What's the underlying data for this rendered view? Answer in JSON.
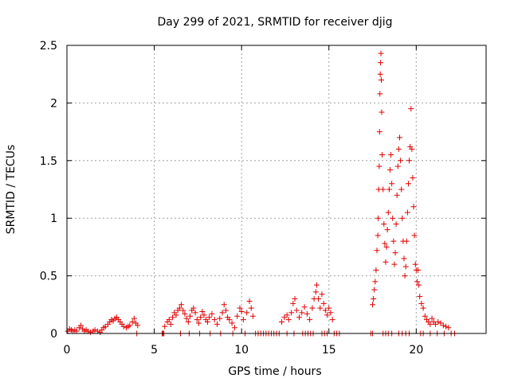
{
  "chart_data": {
    "type": "scatter",
    "title": "Day 299 of 2021, SRMTID for receiver djig",
    "xlabel": "GPS time / hours",
    "ylabel": "SRMTID / TECUs",
    "xlim": [
      0,
      24
    ],
    "ylim": [
      0,
      2.5
    ],
    "xticks": [
      0,
      5,
      10,
      15,
      20
    ],
    "yticks": [
      0,
      0.5,
      1,
      1.5,
      2,
      2.5
    ],
    "xtick_labels": [
      "0",
      "5",
      "10",
      "15",
      "20"
    ],
    "ytick_labels": [
      "0",
      "0.5",
      "1",
      "1.5",
      "2",
      "2.5"
    ],
    "grid": true,
    "marker": "+",
    "color": "#e00000",
    "series": [
      {
        "name": "SRMTID",
        "points": [
          [
            0.05,
            0.02
          ],
          [
            0.15,
            0.04
          ],
          [
            0.25,
            0.03
          ],
          [
            0.35,
            0.02
          ],
          [
            0.45,
            0.03
          ],
          [
            0.55,
            0.02
          ],
          [
            0.7,
            0.05
          ],
          [
            0.8,
            0.07
          ],
          [
            0.9,
            0.04
          ],
          [
            1.0,
            0.02
          ],
          [
            1.1,
            0.03
          ],
          [
            1.2,
            0.02
          ],
          [
            1.35,
            0.01
          ],
          [
            1.5,
            0.02
          ],
          [
            1.6,
            0.03
          ],
          [
            1.75,
            0.02
          ],
          [
            1.9,
            0.01
          ],
          [
            2.0,
            0.03
          ],
          [
            2.1,
            0.05
          ],
          [
            2.2,
            0.06
          ],
          [
            2.35,
            0.08
          ],
          [
            2.45,
            0.1
          ],
          [
            2.55,
            0.12
          ],
          [
            2.65,
            0.11
          ],
          [
            2.75,
            0.13
          ],
          [
            2.85,
            0.14
          ],
          [
            2.95,
            0.12
          ],
          [
            3.05,
            0.1
          ],
          [
            3.15,
            0.08
          ],
          [
            3.25,
            0.06
          ],
          [
            3.4,
            0.05
          ],
          [
            3.5,
            0.06
          ],
          [
            3.6,
            0.07
          ],
          [
            3.75,
            0.1
          ],
          [
            3.85,
            0.13
          ],
          [
            3.95,
            0.09
          ],
          [
            4.05,
            0.07
          ],
          [
            5.6,
            0.06
          ],
          [
            5.75,
            0.1
          ],
          [
            5.85,
            0.12
          ],
          [
            5.95,
            0.08
          ],
          [
            6.05,
            0.14
          ],
          [
            6.15,
            0.18
          ],
          [
            6.25,
            0.16
          ],
          [
            6.35,
            0.2
          ],
          [
            6.45,
            0.22
          ],
          [
            6.55,
            0.25
          ],
          [
            6.65,
            0.2
          ],
          [
            6.75,
            0.17
          ],
          [
            6.85,
            0.13
          ],
          [
            6.95,
            0.1
          ],
          [
            7.05,
            0.15
          ],
          [
            7.15,
            0.2
          ],
          [
            7.25,
            0.22
          ],
          [
            7.35,
            0.18
          ],
          [
            7.45,
            0.12
          ],
          [
            7.55,
            0.09
          ],
          [
            7.65,
            0.14
          ],
          [
            7.75,
            0.19
          ],
          [
            7.85,
            0.16
          ],
          [
            7.95,
            0.12
          ],
          [
            8.05,
            0.1
          ],
          [
            8.15,
            0.14
          ],
          [
            8.3,
            0.17
          ],
          [
            8.45,
            0.12
          ],
          [
            8.6,
            0.08
          ],
          [
            8.75,
            0.13
          ],
          [
            8.9,
            0.18
          ],
          [
            9.0,
            0.25
          ],
          [
            9.1,
            0.2
          ],
          [
            9.2,
            0.14
          ],
          [
            9.3,
            0.12
          ],
          [
            9.45,
            0.09
          ],
          [
            9.6,
            0.05
          ],
          [
            9.75,
            0.15
          ],
          [
            9.9,
            0.22
          ],
          [
            10.0,
            0.19
          ],
          [
            10.1,
            0.12
          ],
          [
            10.3,
            0.18
          ],
          [
            10.45,
            0.28
          ],
          [
            10.55,
            0.22
          ],
          [
            10.65,
            0.15
          ],
          [
            12.3,
            0.1
          ],
          [
            12.45,
            0.14
          ],
          [
            12.6,
            0.16
          ],
          [
            12.7,
            0.12
          ],
          [
            12.85,
            0.18
          ],
          [
            12.95,
            0.26
          ],
          [
            13.05,
            0.3
          ],
          [
            13.15,
            0.2
          ],
          [
            13.3,
            0.14
          ],
          [
            13.45,
            0.18
          ],
          [
            13.6,
            0.23
          ],
          [
            13.75,
            0.17
          ],
          [
            13.9,
            0.12
          ],
          [
            14.05,
            0.22
          ],
          [
            14.15,
            0.3
          ],
          [
            14.25,
            0.36
          ],
          [
            14.3,
            0.42
          ],
          [
            14.4,
            0.3
          ],
          [
            14.5,
            0.22
          ],
          [
            14.6,
            0.34
          ],
          [
            14.7,
            0.26
          ],
          [
            14.8,
            0.2
          ],
          [
            14.9,
            0.16
          ],
          [
            15.0,
            0.22
          ],
          [
            15.1,
            0.18
          ],
          [
            15.2,
            0.12
          ],
          [
            17.5,
            0.25
          ],
          [
            17.55,
            0.3
          ],
          [
            17.6,
            0.38
          ],
          [
            17.65,
            0.45
          ],
          [
            17.7,
            0.55
          ],
          [
            17.75,
            0.72
          ],
          [
            17.8,
            0.85
          ],
          [
            17.82,
            1.0
          ],
          [
            17.85,
            1.25
          ],
          [
            17.88,
            1.45
          ],
          [
            17.9,
            1.75
          ],
          [
            17.92,
            2.08
          ],
          [
            17.94,
            2.25
          ],
          [
            17.96,
            2.35
          ],
          [
            17.98,
            2.43
          ],
          [
            18.0,
            2.2
          ],
          [
            18.02,
            1.92
          ],
          [
            18.05,
            1.55
          ],
          [
            18.1,
            1.25
          ],
          [
            18.15,
            0.95
          ],
          [
            18.2,
            0.78
          ],
          [
            18.25,
            0.62
          ],
          [
            18.3,
            0.75
          ],
          [
            18.35,
            0.9
          ],
          [
            18.4,
            1.05
          ],
          [
            18.45,
            1.25
          ],
          [
            18.5,
            1.42
          ],
          [
            18.55,
            1.55
          ],
          [
            18.6,
            1.3
          ],
          [
            18.65,
            1.0
          ],
          [
            18.7,
            0.8
          ],
          [
            18.75,
            0.6
          ],
          [
            18.8,
            0.7
          ],
          [
            18.85,
            0.95
          ],
          [
            18.9,
            1.2
          ],
          [
            18.95,
            1.45
          ],
          [
            19.0,
            1.6
          ],
          [
            19.05,
            1.7
          ],
          [
            19.1,
            1.5
          ],
          [
            19.15,
            1.25
          ],
          [
            19.2,
            1.0
          ],
          [
            19.25,
            0.8
          ],
          [
            19.3,
            0.65
          ],
          [
            19.35,
            0.5
          ],
          [
            19.4,
            0.58
          ],
          [
            19.45,
            0.8
          ],
          [
            19.5,
            1.05
          ],
          [
            19.55,
            1.3
          ],
          [
            19.6,
            1.5
          ],
          [
            19.65,
            1.62
          ],
          [
            19.7,
            1.95
          ],
          [
            19.75,
            1.6
          ],
          [
            19.8,
            1.35
          ],
          [
            19.85,
            1.1
          ],
          [
            19.9,
            0.85
          ],
          [
            19.95,
            0.6
          ],
          [
            20.0,
            0.55
          ],
          [
            20.05,
            0.45
          ],
          [
            20.1,
            0.55
          ],
          [
            20.15,
            0.42
          ],
          [
            20.2,
            0.32
          ],
          [
            20.3,
            0.26
          ],
          [
            20.4,
            0.22
          ],
          [
            20.5,
            0.15
          ],
          [
            20.6,
            0.12
          ],
          [
            20.7,
            0.1
          ],
          [
            20.8,
            0.08
          ],
          [
            20.9,
            0.13
          ],
          [
            21.0,
            0.1
          ],
          [
            21.1,
            0.08
          ],
          [
            21.25,
            0.1
          ],
          [
            21.4,
            0.09
          ],
          [
            21.55,
            0.07
          ],
          [
            21.7,
            0.06
          ],
          [
            21.85,
            0.05
          ],
          [
            4.0,
            0.0
          ],
          [
            5.45,
            0.0
          ],
          [
            5.5,
            0.0
          ],
          [
            5.55,
            0.0
          ],
          [
            6.5,
            0.0
          ],
          [
            7.0,
            0.0
          ],
          [
            7.6,
            0.0
          ],
          [
            8.2,
            0.0
          ],
          [
            8.8,
            0.0
          ],
          [
            9.5,
            0.0
          ],
          [
            10.2,
            0.0
          ],
          [
            10.8,
            0.0
          ],
          [
            10.95,
            0.0
          ],
          [
            11.1,
            0.0
          ],
          [
            11.25,
            0.0
          ],
          [
            11.4,
            0.0
          ],
          [
            11.55,
            0.0
          ],
          [
            11.7,
            0.0
          ],
          [
            11.85,
            0.0
          ],
          [
            12.0,
            0.0
          ],
          [
            12.15,
            0.0
          ],
          [
            12.6,
            0.0
          ],
          [
            13.0,
            0.0
          ],
          [
            13.5,
            0.0
          ],
          [
            13.65,
            0.0
          ],
          [
            13.8,
            0.0
          ],
          [
            13.95,
            0.0
          ],
          [
            14.1,
            0.0
          ],
          [
            14.6,
            0.0
          ],
          [
            14.75,
            0.0
          ],
          [
            14.9,
            0.0
          ],
          [
            15.3,
            0.0
          ],
          [
            15.45,
            0.0
          ],
          [
            15.6,
            0.0
          ],
          [
            17.4,
            0.0
          ],
          [
            17.5,
            0.0
          ],
          [
            18.1,
            0.0
          ],
          [
            18.25,
            0.0
          ],
          [
            18.4,
            0.0
          ],
          [
            18.6,
            0.0
          ],
          [
            19.0,
            0.0
          ],
          [
            19.2,
            0.0
          ],
          [
            19.4,
            0.0
          ],
          [
            19.6,
            0.0
          ],
          [
            20.25,
            0.0
          ],
          [
            20.4,
            0.0
          ],
          [
            20.8,
            0.0
          ],
          [
            21.2,
            0.0
          ],
          [
            21.6,
            0.0
          ],
          [
            22.0,
            0.0
          ],
          [
            22.2,
            0.0
          ]
        ]
      }
    ]
  }
}
